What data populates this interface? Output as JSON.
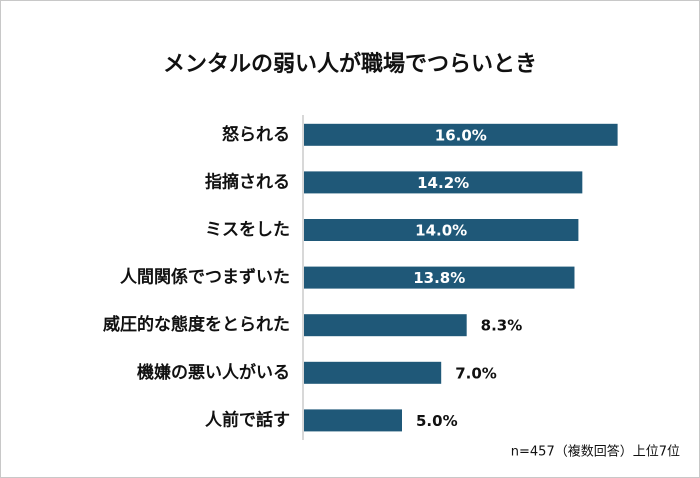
{
  "chart_data": {
    "type": "bar",
    "orientation": "horizontal",
    "title": "メンタルの弱い人が職場でつらいとき",
    "categories": [
      "怒られる",
      "指摘される",
      "ミスをした",
      "人間関係でつまずいた",
      "威圧的な態度をとられた",
      "機嫌の悪い人がいる",
      "人前で話す"
    ],
    "values": [
      16.0,
      14.2,
      14.0,
      13.8,
      8.3,
      7.0,
      5.0
    ],
    "value_labels": [
      "16.0%",
      "14.2%",
      "14.0%",
      "13.8%",
      "8.3%",
      "7.0%",
      "5.0%"
    ],
    "color": "#1f5878",
    "note": "n=457（複数回答）上位7位"
  }
}
